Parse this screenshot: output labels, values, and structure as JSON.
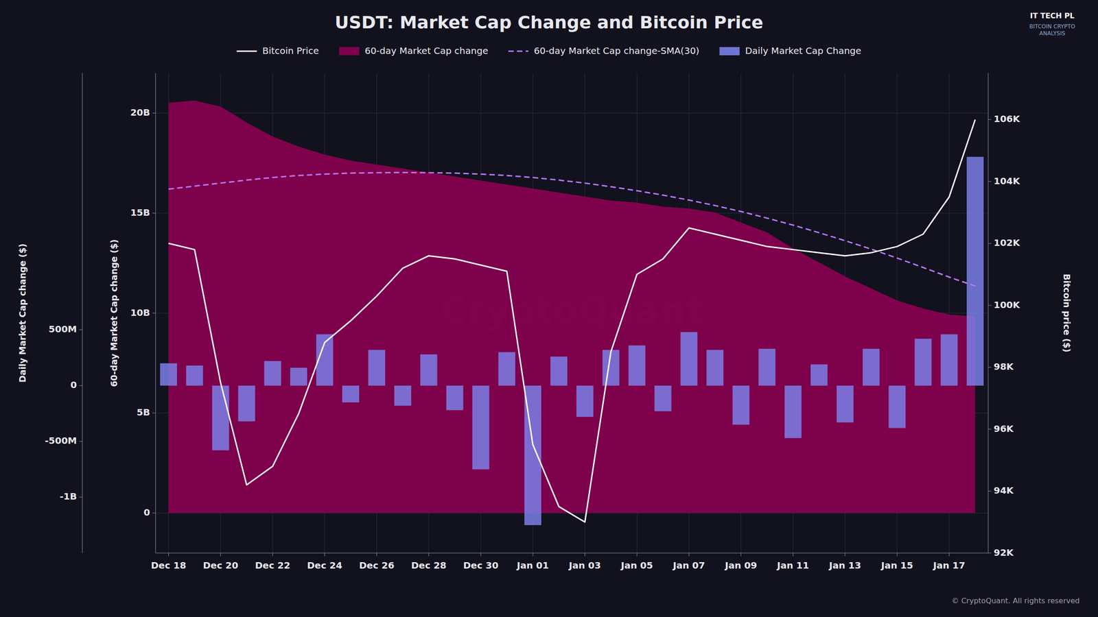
{
  "chart_data": {
    "type": "combo",
    "title": "USDT: Market Cap Change and Bitcoin Price",
    "ylabel": "60-day Market Cap change ($)",
    "y2label": "Bitcoin price ($)",
    "y3label": "Daily Market Cap change ($)",
    "categories": [
      "Dec 18",
      null,
      "Dec 20",
      null,
      "Dec 22",
      null,
      "Dec 24",
      null,
      "Dec 26",
      null,
      "Dec 28",
      null,
      "Dec 30",
      null,
      "Jan 01",
      null,
      "Jan 03",
      null,
      "Jan 05",
      null,
      "Jan 07",
      null,
      "Jan 09",
      null,
      "Jan 11",
      null,
      "Jan 13",
      null,
      "Jan 15",
      null,
      "Jan 17",
      null
    ],
    "series": [
      {
        "name": "Bitcoin Price",
        "type": "line",
        "axis": "y2",
        "color": "#ffffff",
        "line_style": "solid",
        "values": [
          102000,
          101800,
          97500,
          94200,
          94800,
          96500,
          98800,
          99500,
          100300,
          101200,
          101600,
          101500,
          101300,
          101100,
          95500,
          93500,
          93000,
          98500,
          101000,
          101500,
          102500,
          102300,
          102100,
          101900,
          101800,
          101700,
          101600,
          101700,
          101900,
          102300,
          103500,
          106000
        ]
      },
      {
        "name": "60-day Market Cap change",
        "type": "area",
        "axis": "y",
        "color": "#8b0050",
        "values": [
          20500000000,
          20600000000,
          20300000000,
          19500000000,
          18800000000,
          18300000000,
          17900000000,
          17600000000,
          17400000000,
          17200000000,
          17000000000,
          16800000000,
          16600000000,
          16400000000,
          16200000000,
          16000000000,
          15800000000,
          15600000000,
          15500000000,
          15300000000,
          15200000000,
          15000000000,
          14500000000,
          14000000000,
          13200000000,
          12500000000,
          11800000000,
          11200000000,
          10600000000,
          10200000000,
          9900000000,
          9800000000
        ]
      },
      {
        "name": "60-day Market Cap change-SMA(30)",
        "type": "line",
        "axis": "y",
        "color": "#bb77ff",
        "line_style": "dashed",
        "values": [
          16200000000,
          16350000000,
          16500000000,
          16650000000,
          16780000000,
          16880000000,
          16950000000,
          17000000000,
          17020000000,
          17030000000,
          17020000000,
          17000000000,
          16950000000,
          16880000000,
          16780000000,
          16650000000,
          16500000000,
          16320000000,
          16120000000,
          15900000000,
          15650000000,
          15380000000,
          15080000000,
          14750000000,
          14400000000,
          14020000000,
          13620000000,
          13200000000,
          12750000000,
          12280000000,
          11800000000,
          11350000000
        ]
      },
      {
        "name": "Daily Market Cap Change",
        "type": "bar",
        "axis": "y3",
        "color": "#7b7fe8",
        "values": [
          200000000,
          180000000,
          -580000000,
          -320000000,
          220000000,
          160000000,
          460000000,
          -150000000,
          320000000,
          -180000000,
          280000000,
          -220000000,
          -750000000,
          300000000,
          -1250000000,
          260000000,
          -280000000,
          320000000,
          360000000,
          -230000000,
          480000000,
          320000000,
          -350000000,
          330000000,
          -470000000,
          190000000,
          -330000000,
          330000000,
          -380000000,
          420000000,
          460000000,
          2050000000
        ]
      }
    ],
    "ylim": [
      -2000000000,
      22000000000
    ],
    "yticks": [
      {
        "value": 20000000000,
        "label": "20B"
      },
      {
        "value": 15000000000,
        "label": "15B"
      },
      {
        "value": 10000000000,
        "label": "10B"
      },
      {
        "value": 5000000000,
        "label": "5B"
      },
      0
    ],
    "y2lim": [
      92000,
      107500
    ],
    "y2ticks": [
      {
        "value": 106000,
        "label": "106K"
      },
      {
        "value": 104000,
        "label": "104K"
      },
      {
        "value": 102000,
        "label": "102K"
      },
      {
        "value": 100000,
        "label": "100K"
      },
      {
        "value": 98000,
        "label": "98K"
      },
      {
        "value": 96000,
        "label": "96K"
      },
      {
        "value": 94000,
        "label": "94K"
      },
      {
        "value": 92000,
        "label": "92K"
      }
    ],
    "y3lim": [
      -1500000000,
      2800000000
    ],
    "y3ticks": [
      {
        "value": 500000000,
        "label": "500M"
      },
      0,
      {
        "value": -500000000,
        "label": "-500M"
      },
      {
        "value": -1000000000,
        "label": "-1B"
      }
    ],
    "grid": true,
    "legend": "top",
    "annotations": [
      "CryptoQuant",
      "© CryptoQuant. All rights reserved",
      "IT TECH PL",
      "BITCOIN CRYPTO\nANALYSIS"
    ]
  }
}
